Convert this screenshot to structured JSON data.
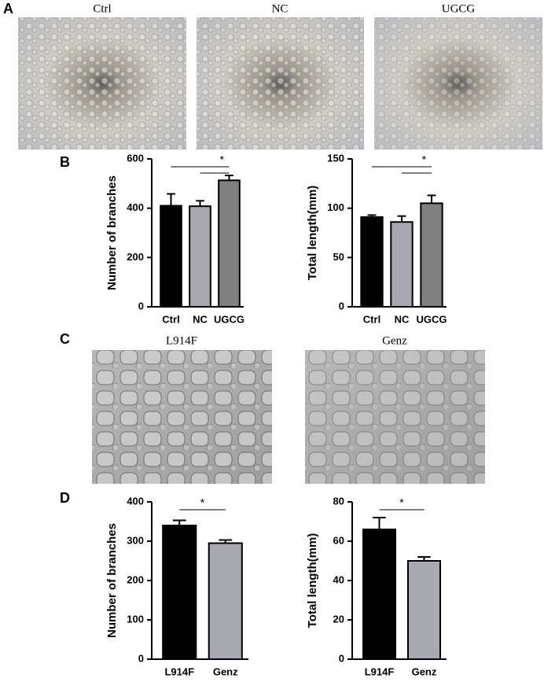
{
  "panel_labels": [
    "A",
    "B",
    "C",
    "D"
  ],
  "panel_a_images": [
    "Ctrl",
    "NC",
    "UGCG"
  ],
  "panel_c_images": [
    "L914F",
    "Genz"
  ],
  "chart_data": [
    {
      "type": "bar",
      "ylabel": "Number of branches",
      "categories": [
        "Ctrl",
        "NC",
        "UGCG"
      ],
      "values": [
        410,
        408,
        513
      ],
      "errors": [
        48,
        22,
        20
      ],
      "colors": [
        "#000000",
        "#a8a8b0",
        "#808080"
      ],
      "ylim": [
        0,
        600
      ],
      "yticks": [
        0,
        200,
        400,
        600
      ],
      "annotation": "*",
      "comparisons": [
        [
          "Ctrl",
          "UGCG"
        ],
        [
          "NC",
          "UGCG"
        ]
      ]
    },
    {
      "type": "bar",
      "ylabel": "Total length(mm)",
      "categories": [
        "Ctrl",
        "NC",
        "UGCG"
      ],
      "values": [
        91,
        86,
        105
      ],
      "errors": [
        2,
        6,
        8
      ],
      "colors": [
        "#000000",
        "#a8a8b0",
        "#808080"
      ],
      "ylim": [
        0,
        150
      ],
      "yticks": [
        0,
        50,
        100,
        150
      ],
      "annotation": "*",
      "comparisons": [
        [
          "Ctrl",
          "UGCG"
        ],
        [
          "NC",
          "UGCG"
        ]
      ]
    },
    {
      "type": "bar",
      "ylabel": "Number of branches",
      "categories": [
        "L914F",
        "Genz"
      ],
      "values": [
        340,
        295
      ],
      "errors": [
        13,
        8
      ],
      "colors": [
        "#000000",
        "#a8a8b0"
      ],
      "ylim": [
        0,
        400
      ],
      "yticks": [
        0,
        100,
        200,
        300,
        400
      ],
      "annotation": "*",
      "comparisons": [
        [
          "L914F",
          "Genz"
        ]
      ]
    },
    {
      "type": "bar",
      "ylabel": "Total length(mm)",
      "categories": [
        "L914F",
        "Genz"
      ],
      "values": [
        66,
        50
      ],
      "errors": [
        6,
        2
      ],
      "colors": [
        "#000000",
        "#a8a8b0"
      ],
      "ylim": [
        0,
        80
      ],
      "yticks": [
        0,
        20,
        40,
        60,
        80
      ],
      "annotation": "*",
      "comparisons": [
        [
          "L914F",
          "Genz"
        ]
      ]
    }
  ]
}
